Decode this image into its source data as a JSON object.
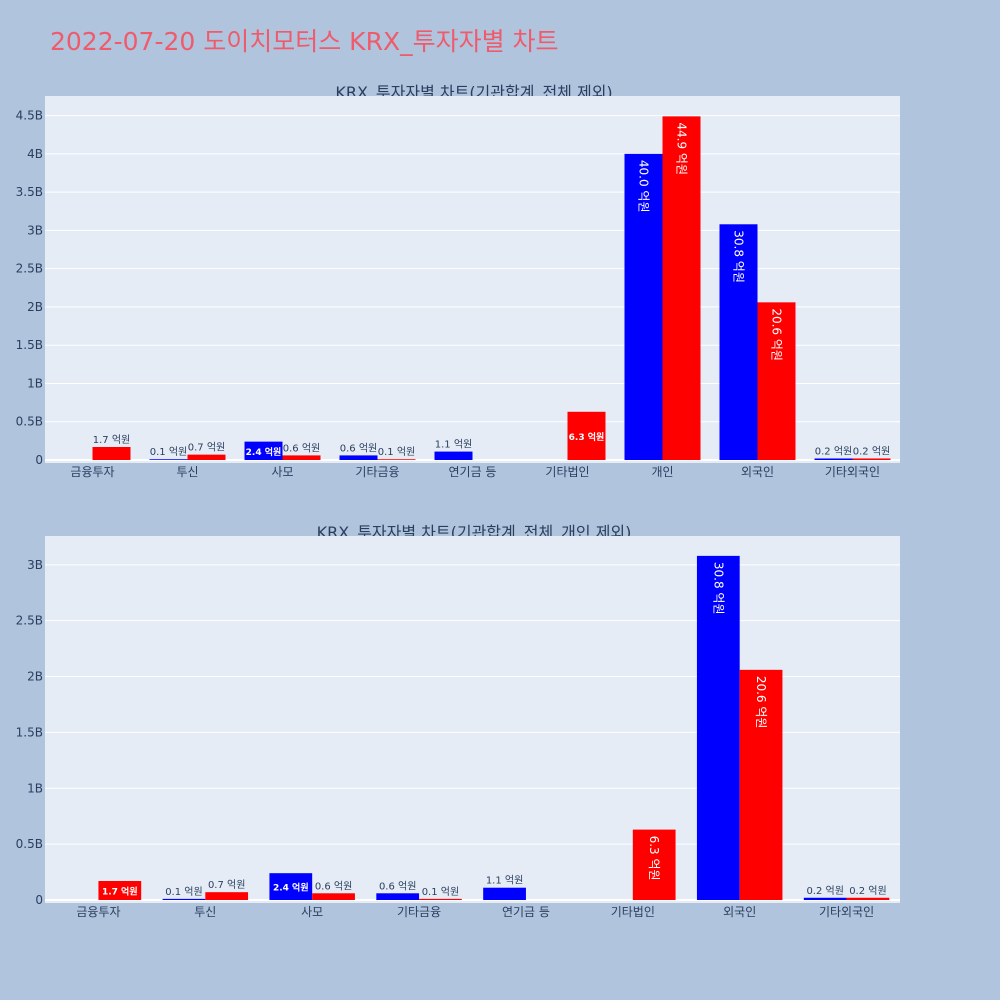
{
  "page_title": "2022-07-20 도이치모터스 KRX_투자자별 차트",
  "colors": {
    "buy": "#0000ff",
    "sell": "#ff0000",
    "plot_bg": "#e5ecf6",
    "page_bg": "#b0c4de",
    "title": "#ef5b6b"
  },
  "chart_data": [
    {
      "type": "bar",
      "title": "KRX_투자자별 차트(기관합계_전체 제외)",
      "categories": [
        "금융투자",
        "투신",
        "사모",
        "기타금융",
        "연기금 등",
        "기타법인",
        "개인",
        "외국인",
        "기타외국인"
      ],
      "series": [
        {
          "color": "#0000ff",
          "values": [
            0,
            10000000,
            240000000,
            60000000,
            110000000,
            0,
            4000000000,
            3080000000,
            20000000
          ],
          "labels": [
            "",
            "0.1 억원",
            "2.4 억원",
            "0.6 억원",
            "1.1 억원",
            "",
            "40.0 억원",
            "30.8 억원",
            "0.2 억원"
          ]
        },
        {
          "color": "#ff0000",
          "values": [
            170000000,
            70000000,
            60000000,
            10000000,
            0,
            630000000,
            4490000000,
            2060000000,
            20000000
          ],
          "labels": [
            "1.7 억원",
            "0.7 억원",
            "0.6 억원",
            "0.1 억원",
            "",
            "6.3 억원",
            "44.9 억원",
            "20.6 억원",
            "0.2 억원"
          ]
        }
      ],
      "yticks": [
        "0",
        "0.5B",
        "1B",
        "1.5B",
        "2B",
        "2.5B",
        "3B",
        "3.5B",
        "4B",
        "4.5B"
      ],
      "ylim": [
        0,
        4730000000
      ],
      "grid": true
    },
    {
      "type": "bar",
      "title": "KRX_투자자별 차트(기관합계_전체_개인 제외)",
      "categories": [
        "금융투자",
        "투신",
        "사모",
        "기타금융",
        "연기금 등",
        "기타법인",
        "외국인",
        "기타외국인"
      ],
      "series": [
        {
          "color": "#0000ff",
          "values": [
            0,
            10000000,
            240000000,
            60000000,
            110000000,
            0,
            3080000000,
            20000000
          ],
          "labels": [
            "",
            "0.1 억원",
            "2.4 억원",
            "0.6 억원",
            "1.1 억원",
            "",
            "30.8 억원",
            "0.2 억원"
          ]
        },
        {
          "color": "#ff0000",
          "values": [
            170000000,
            70000000,
            60000000,
            10000000,
            0,
            630000000,
            2060000000,
            20000000
          ],
          "labels": [
            "1.7 억원",
            "0.7 억원",
            "0.6 억원",
            "0.1 억원",
            "",
            "6.3 억원",
            "20.6 억원",
            "0.2 억원"
          ]
        }
      ],
      "yticks": [
        "0",
        "0.5B",
        "1B",
        "1.5B",
        "2B",
        "2.5B",
        "3B"
      ],
      "ylim": [
        0,
        3240000000
      ],
      "grid": true
    }
  ]
}
